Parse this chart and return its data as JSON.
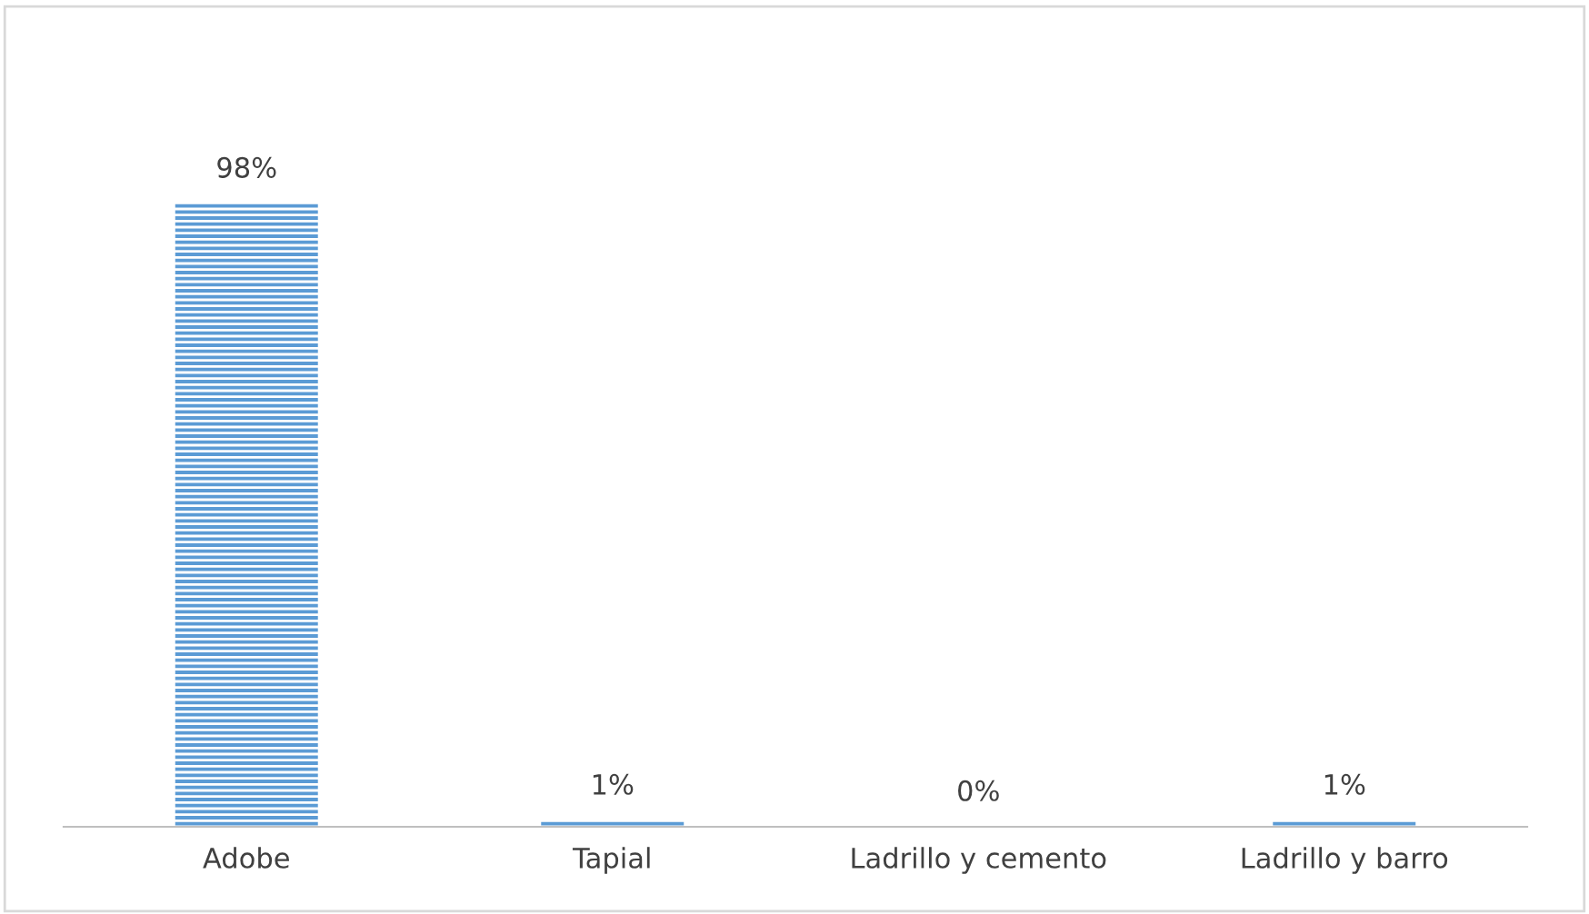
{
  "chart_data": {
    "type": "bar",
    "categories": [
      "Adobe",
      "Tapial",
      "Ladrillo y cemento",
      "Ladrillo y barro"
    ],
    "values": [
      98,
      1,
      0,
      1
    ],
    "value_labels": [
      "98%",
      "1%",
      "0%",
      "1%"
    ],
    "color": "#5b9bd5",
    "grid": false,
    "legend": false
  }
}
